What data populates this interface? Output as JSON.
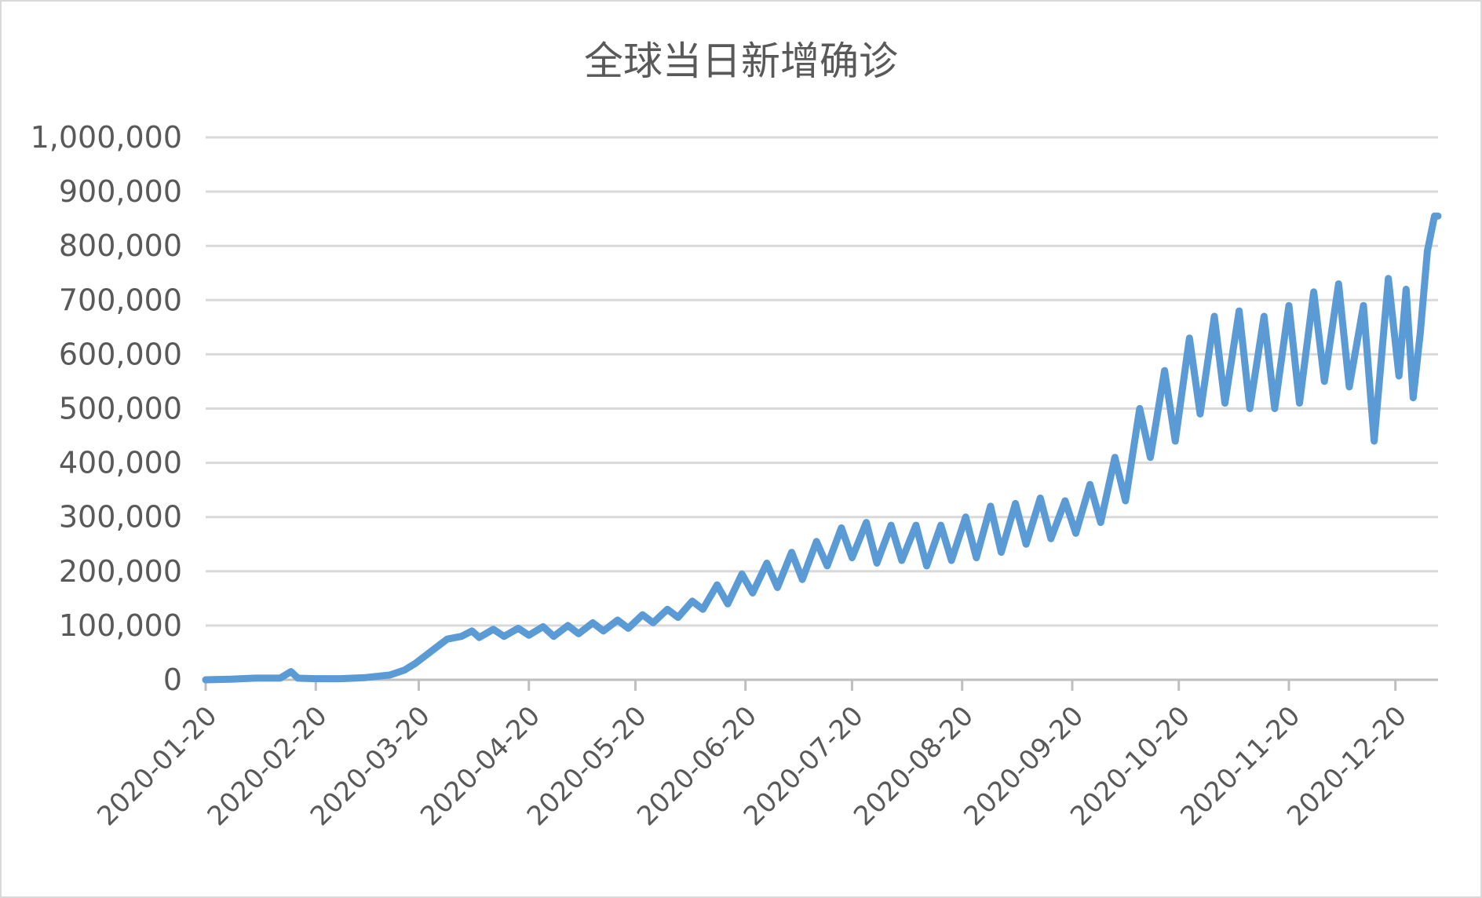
{
  "chart_data": {
    "type": "line",
    "title": "全球当日新增确诊",
    "xlabel": "",
    "ylabel": "",
    "ylim": [
      0,
      1000000
    ],
    "xlim": [
      "2020-01-20",
      "2021-01-01"
    ],
    "grid": true,
    "legend": "none",
    "color": "#5b9bd5",
    "y_ticks": [
      "0",
      "100,000",
      "200,000",
      "300,000",
      "400,000",
      "500,000",
      "600,000",
      "700,000",
      "800,000",
      "900,000",
      "1,000,000"
    ],
    "x_ticks": [
      "2020-01-20",
      "2020-02-20",
      "2020-03-20",
      "2020-04-20",
      "2020-05-20",
      "2020-06-20",
      "2020-07-20",
      "2020-08-20",
      "2020-09-20",
      "2020-10-20",
      "2020-11-20",
      "2020-12-20"
    ],
    "series": [
      {
        "x": [
          "2020-01-20",
          "2020-01-27",
          "2020-02-03",
          "2020-02-10",
          "2020-02-13",
          "2020-02-15",
          "2020-02-20",
          "2020-02-27",
          "2020-03-05",
          "2020-03-12",
          "2020-03-16",
          "2020-03-19",
          "2020-03-22",
          "2020-03-25",
          "2020-03-28",
          "2020-04-01",
          "2020-04-04",
          "2020-04-06",
          "2020-04-10",
          "2020-04-13",
          "2020-04-17",
          "2020-04-20",
          "2020-04-24",
          "2020-04-27",
          "2020-05-01",
          "2020-05-04",
          "2020-05-08",
          "2020-05-11",
          "2020-05-15",
          "2020-05-18",
          "2020-05-22",
          "2020-05-25",
          "2020-05-29",
          "2020-06-01",
          "2020-06-05",
          "2020-06-08",
          "2020-06-12",
          "2020-06-15",
          "2020-06-19",
          "2020-06-22",
          "2020-06-26",
          "2020-06-29",
          "2020-07-03",
          "2020-07-06",
          "2020-07-10",
          "2020-07-13",
          "2020-07-17",
          "2020-07-20",
          "2020-07-24",
          "2020-07-27",
          "2020-07-31",
          "2020-08-03",
          "2020-08-07",
          "2020-08-10",
          "2020-08-14",
          "2020-08-17",
          "2020-08-21",
          "2020-08-24",
          "2020-08-28",
          "2020-08-31",
          "2020-09-04",
          "2020-09-07",
          "2020-09-11",
          "2020-09-14",
          "2020-09-18",
          "2020-09-21",
          "2020-09-25",
          "2020-09-28",
          "2020-10-02",
          "2020-10-05",
          "2020-10-09",
          "2020-10-12",
          "2020-10-16",
          "2020-10-19",
          "2020-10-23",
          "2020-10-26",
          "2020-10-30",
          "2020-11-02",
          "2020-11-06",
          "2020-11-09",
          "2020-11-13",
          "2020-11-16",
          "2020-11-20",
          "2020-11-23",
          "2020-11-27",
          "2020-11-30",
          "2020-12-04",
          "2020-12-07",
          "2020-12-11",
          "2020-12-14",
          "2020-12-18",
          "2020-12-21",
          "2020-12-23",
          "2020-12-25",
          "2020-12-27",
          "2020-12-29",
          "2020-12-31",
          "2021-01-01"
        ],
        "values": [
          0,
          1000,
          3000,
          3000,
          15000,
          3000,
          2000,
          2000,
          4000,
          9000,
          18000,
          30000,
          45000,
          60000,
          75000,
          80000,
          90000,
          78000,
          93000,
          80000,
          95000,
          82000,
          98000,
          80000,
          100000,
          85000,
          105000,
          90000,
          110000,
          95000,
          120000,
          105000,
          130000,
          115000,
          145000,
          130000,
          175000,
          140000,
          195000,
          160000,
          215000,
          170000,
          235000,
          185000,
          255000,
          210000,
          280000,
          225000,
          290000,
          215000,
          285000,
          220000,
          285000,
          210000,
          285000,
          220000,
          300000,
          225000,
          320000,
          235000,
          325000,
          250000,
          335000,
          260000,
          330000,
          270000,
          360000,
          290000,
          410000,
          330000,
          500000,
          410000,
          570000,
          440000,
          630000,
          490000,
          670000,
          510000,
          680000,
          500000,
          670000,
          500000,
          690000,
          510000,
          715000,
          550000,
          730000,
          540000,
          690000,
          440000,
          740000,
          560000,
          720000,
          520000,
          640000,
          790000,
          855000,
          855000
        ]
      }
    ]
  }
}
